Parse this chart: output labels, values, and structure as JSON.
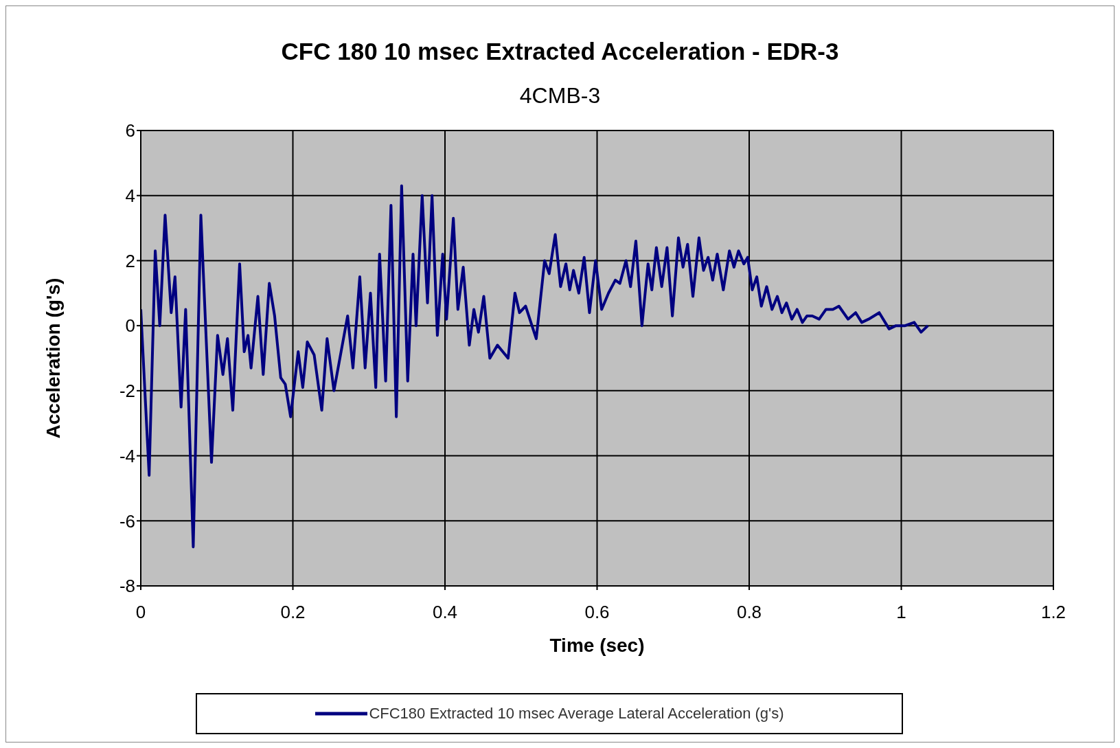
{
  "chart_data": {
    "type": "line",
    "title": "CFC 180 10 msec Extracted Acceleration - EDR-3",
    "subtitle": "4CMB-3",
    "xlabel": "Time (sec)",
    "ylabel": "Acceleration (g's)",
    "xlim": [
      0,
      1.2
    ],
    "xticks": [
      0,
      0.2,
      0.4,
      0.6,
      0.8,
      1,
      1.2
    ],
    "ylim": [
      -8,
      6
    ],
    "yticks": [
      -8,
      -6,
      -4,
      -2,
      0,
      2,
      4,
      6
    ],
    "grid": true,
    "legend": "bottom",
    "marker": "none",
    "line_style": "solid",
    "x": [
      0,
      0.011,
      0.019,
      0.025,
      0.032,
      0.04,
      0.045,
      0.053,
      0.059,
      0.069,
      0.079,
      0.093,
      0.101,
      0.108,
      0.114,
      0.121,
      0.13,
      0.136,
      0.141,
      0.145,
      0.154,
      0.161,
      0.169,
      0.176,
      0.184,
      0.19,
      0.197,
      0.207,
      0.213,
      0.219,
      0.228,
      0.238,
      0.245,
      0.254,
      0.272,
      0.279,
      0.288,
      0.295,
      0.302,
      0.309,
      0.314,
      0.322,
      0.329,
      0.336,
      0.343,
      0.351,
      0.358,
      0.362,
      0.37,
      0.377,
      0.383,
      0.39,
      0.397,
      0.402,
      0.411,
      0.417,
      0.424,
      0.432,
      0.438,
      0.444,
      0.451,
      0.459,
      0.469,
      0.483,
      0.492,
      0.498,
      0.506,
      0.52,
      0.531,
      0.537,
      0.545,
      0.552,
      0.559,
      0.564,
      0.569,
      0.576,
      0.583,
      0.59,
      0.598,
      0.606,
      0.615,
      0.624,
      0.63,
      0.638,
      0.644,
      0.651,
      0.659,
      0.667,
      0.672,
      0.678,
      0.685,
      0.692,
      0.699,
      0.707,
      0.713,
      0.719,
      0.726,
      0.734,
      0.74,
      0.746,
      0.752,
      0.758,
      0.766,
      0.774,
      0.78,
      0.786,
      0.793,
      0.798,
      0.804,
      0.81,
      0.816,
      0.823,
      0.83,
      0.837,
      0.843,
      0.849,
      0.856,
      0.863,
      0.87,
      0.876,
      0.883,
      0.892,
      0.901,
      0.91,
      0.918,
      0.93,
      0.94,
      0.948,
      0.957,
      0.971,
      0.984,
      0.993,
      1.005,
      1.017,
      1.026,
      1.035
    ],
    "series": [
      {
        "name": "CFC180 Extracted 10 msec Average Lateral Acceleration (g's)",
        "color": "#000080",
        "values": [
          0.5,
          -4.6,
          2.3,
          0,
          3.4,
          0.4,
          1.5,
          -2.5,
          0.5,
          -6.8,
          3.4,
          -4.2,
          -0.3,
          -1.5,
          -0.4,
          -2.6,
          1.9,
          -0.8,
          -0.3,
          -1.3,
          0.9,
          -1.5,
          1.3,
          0.3,
          -1.6,
          -1.8,
          -2.8,
          -0.8,
          -1.9,
          -0.5,
          -0.9,
          -2.6,
          -0.4,
          -2,
          0.3,
          -1.3,
          1.5,
          -1.3,
          1,
          -1.9,
          2.2,
          -1.7,
          3.7,
          -2.8,
          4.3,
          -1.7,
          2.2,
          0,
          4,
          0.7,
          4,
          -0.3,
          2.2,
          0.2,
          3.3,
          0.5,
          1.8,
          -0.6,
          0.5,
          -0.2,
          0.9,
          -1,
          -0.6,
          -1,
          1,
          0.4,
          0.6,
          -0.4,
          2,
          1.6,
          2.8,
          1.2,
          1.9,
          1.1,
          1.7,
          1,
          2.1,
          0.4,
          2,
          0.5,
          1,
          1.4,
          1.3,
          2,
          1.2,
          2.6,
          0,
          1.9,
          1.1,
          2.4,
          1.2,
          2.4,
          0.3,
          2.7,
          1.8,
          2.5,
          0.9,
          2.7,
          1.7,
          2.1,
          1.4,
          2.2,
          1.1,
          2.3,
          1.8,
          2.3,
          1.9,
          2.1,
          1.1,
          1.5,
          0.6,
          1.2,
          0.5,
          0.9,
          0.4,
          0.7,
          0.2,
          0.5,
          0.1,
          0.3,
          0.3,
          0.2,
          0.5,
          0.5,
          0.6,
          0.2,
          0.4,
          0.1,
          0.2,
          0.4,
          -0.1,
          0,
          0,
          0.1,
          -0.2,
          0
        ]
      }
    ]
  }
}
